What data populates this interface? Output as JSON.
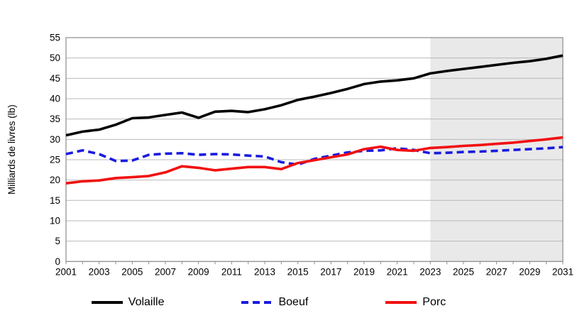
{
  "chart_data": {
    "type": "line",
    "title": "",
    "xlabel": "",
    "ylabel": "Milliards de livres (lb)",
    "ylim": [
      0,
      55
    ],
    "yticks": [
      0,
      5,
      10,
      15,
      20,
      25,
      30,
      35,
      40,
      45,
      50,
      55
    ],
    "x": [
      2001,
      2002,
      2003,
      2004,
      2005,
      2006,
      2007,
      2008,
      2009,
      2010,
      2011,
      2012,
      2013,
      2014,
      2015,
      2016,
      2017,
      2018,
      2019,
      2020,
      2021,
      2022,
      2023,
      2024,
      2025,
      2026,
      2027,
      2028,
      2029,
      2030,
      2031
    ],
    "xticks_labeled": [
      2001,
      2003,
      2005,
      2007,
      2009,
      2011,
      2013,
      2015,
      2017,
      2019,
      2021,
      2023,
      2025,
      2027,
      2029,
      2031
    ],
    "grid": true,
    "legend_position": "bottom",
    "shaded_region": {
      "from": 2023,
      "to": 2031,
      "color": "#e9e9e9"
    },
    "series": [
      {
        "name": "Volaille",
        "color": "#000000",
        "style": "solid",
        "values": [
          31.0,
          31.9,
          32.4,
          33.6,
          35.2,
          35.4,
          36.0,
          36.6,
          35.3,
          36.8,
          37.0,
          36.7,
          37.4,
          38.4,
          39.7,
          40.5,
          41.4,
          42.4,
          43.6,
          44.2,
          44.5,
          45.0,
          46.2,
          46.8,
          47.3,
          47.8,
          48.3,
          48.8,
          49.2,
          49.8,
          50.6
        ]
      },
      {
        "name": "Boeuf",
        "color": "#1a1ae0",
        "style": "dashed",
        "values": [
          26.4,
          27.3,
          26.4,
          24.7,
          24.8,
          26.2,
          26.5,
          26.6,
          26.2,
          26.4,
          26.3,
          26.0,
          25.8,
          24.4,
          23.8,
          25.2,
          26.0,
          26.8,
          27.2,
          27.3,
          27.8,
          27.4,
          26.6,
          26.7,
          26.9,
          27.0,
          27.2,
          27.4,
          27.6,
          27.8,
          28.1
        ]
      },
      {
        "name": "Porc",
        "color": "#f21010",
        "style": "solid",
        "values": [
          19.2,
          19.7,
          19.9,
          20.5,
          20.7,
          21.0,
          21.9,
          23.4,
          23.0,
          22.4,
          22.8,
          23.2,
          23.2,
          22.7,
          24.2,
          24.9,
          25.6,
          26.3,
          27.6,
          28.2,
          27.4,
          27.2,
          27.9,
          28.1,
          28.4,
          28.6,
          28.9,
          29.2,
          29.6,
          30.0,
          30.5
        ]
      }
    ],
    "axis_color": "#8c8c8c",
    "gridline_color": "#b9b9b9"
  }
}
